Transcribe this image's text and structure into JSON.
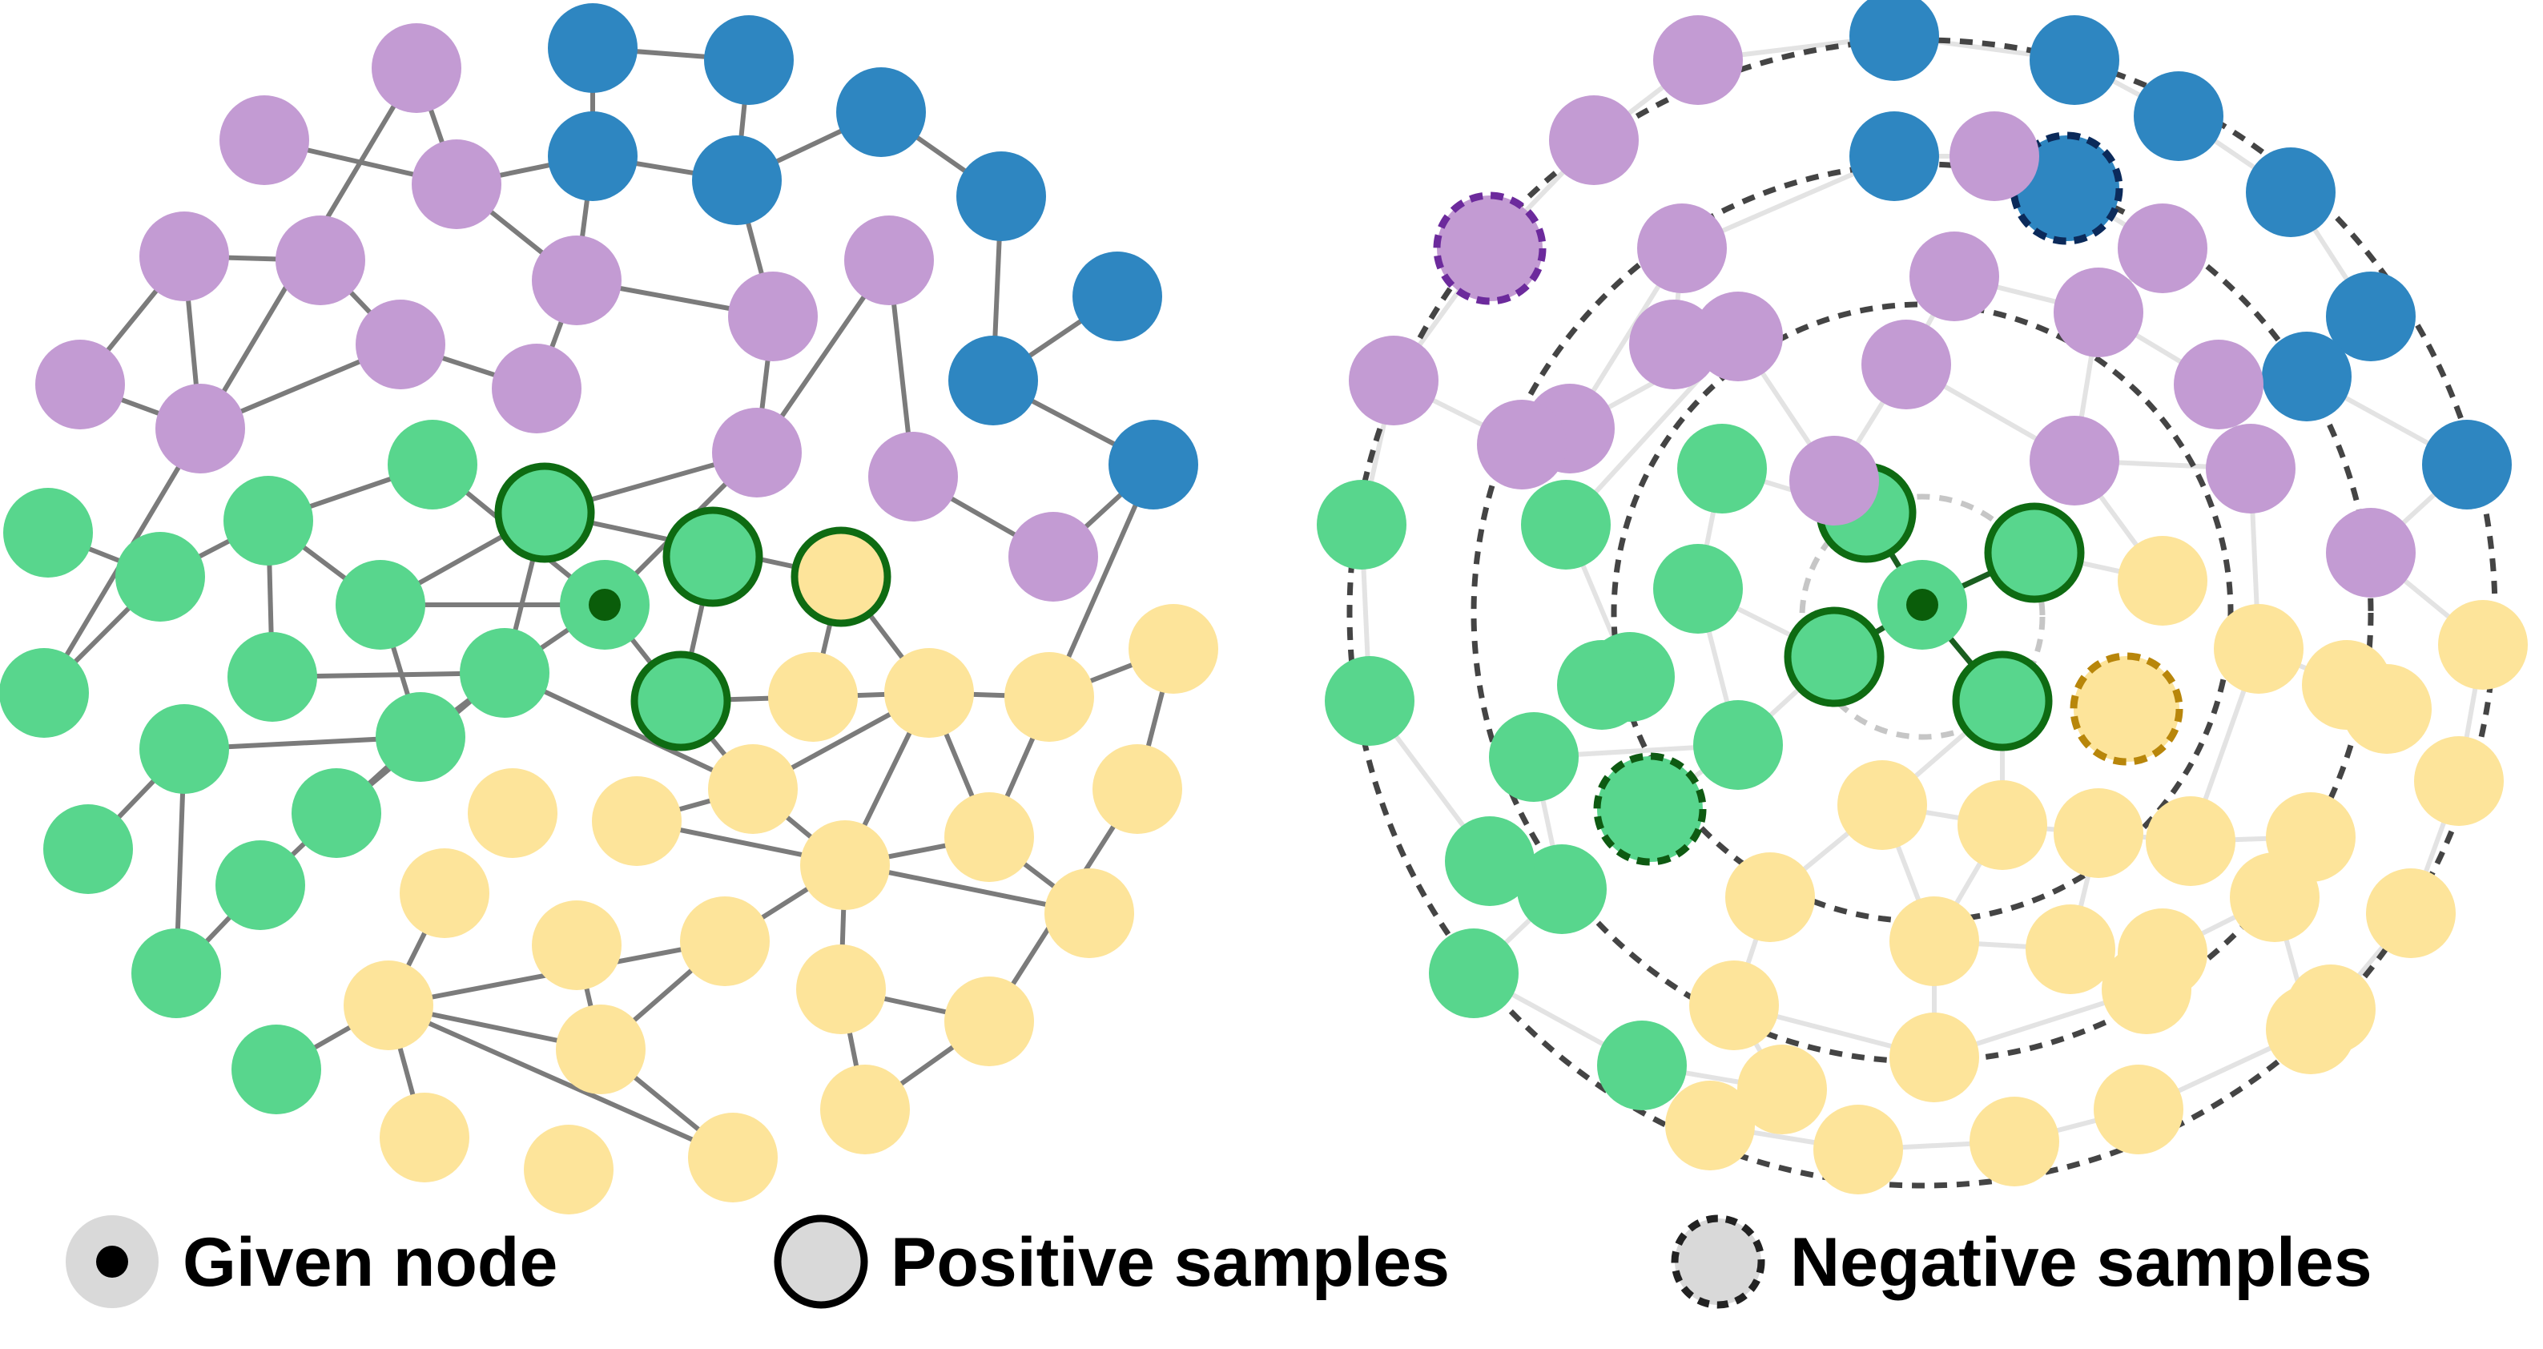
{
  "colors": {
    "purple": "#c39bd3",
    "blue": "#2e86c1",
    "green": "#58d68d",
    "yellow": "#fde49a",
    "edge": "#7b7b7b",
    "edge_faint": "#e3e3e3",
    "ring": "#444444",
    "positive_outline": "#0e6b12",
    "given_dot": "#0a5d0a",
    "neg_purple_outline": "#6c2a9c",
    "neg_blue_outline": "#0b2a5a",
    "neg_green_outline": "#0e5a12",
    "neg_yellow_outline": "#b8860b",
    "legend_gray": "#d9d9d9"
  },
  "legend": {
    "given_node": "Given node",
    "positive_samples": "Positive samples",
    "negative_samples": "Negative samples"
  },
  "left_graph": {
    "description_icon": "graph-network-icon"
  },
  "right_graph": {
    "description_icon": "concentric-rings-icon"
  }
}
